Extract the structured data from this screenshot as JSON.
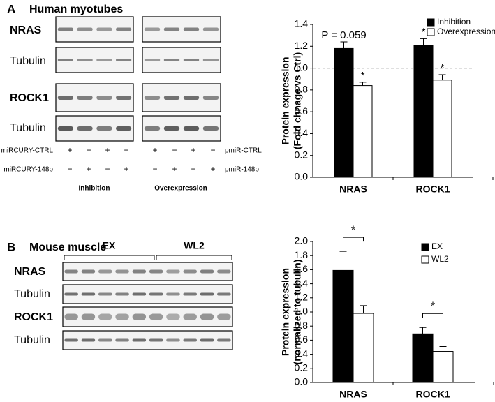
{
  "panel_a": {
    "label": "A",
    "title": "Human myotubes",
    "blot_labels": [
      "NRAS",
      "Tubulin",
      "ROCK1",
      "Tubulin"
    ],
    "rows": [
      {
        "left": "miRCURY-CTRL",
        "right": "pmiR-CTRL",
        "left_signs": [
          "+",
          "−",
          "+",
          "−"
        ],
        "right_signs": [
          "+",
          "−",
          "+",
          "−"
        ]
      },
      {
        "left": "miRCURY-148b",
        "right": "pmiR-148b",
        "left_signs": [
          "−",
          "+",
          "−",
          "+"
        ],
        "right_signs": [
          "−",
          "+",
          "−",
          "+"
        ]
      }
    ],
    "groups": [
      "Inhibition",
      "Overexpression"
    ]
  },
  "panel_b": {
    "label": "B",
    "title": "Mouse muscle",
    "blot_labels": [
      "NRAS",
      "Tubulin",
      "ROCK1",
      "Tubulin"
    ],
    "groups": [
      "EX",
      "WL2"
    ]
  },
  "chart_data": [
    {
      "type": "bar",
      "ylabel": [
        "Protein expression",
        "(Fold chnage vs Ctrl)"
      ],
      "categories": [
        "NRAS",
        "ROCK1"
      ],
      "series": [
        {
          "name": "Inhibition",
          "color": "#000000",
          "values": [
            1.18,
            1.21
          ],
          "errors": [
            0.06,
            0.06
          ],
          "annotations": [
            "P = 0.059",
            "*"
          ]
        },
        {
          "name": "Overexpression",
          "color": "#ffffff",
          "values": [
            0.84,
            0.89
          ],
          "errors": [
            0.03,
            0.05
          ],
          "annotations": [
            "*",
            "*"
          ]
        }
      ],
      "ylim": [
        0,
        1.4
      ],
      "yticks": [
        {
          "value": 0,
          "label": "0.0"
        },
        0.2,
        0.4,
        0.6,
        0.8,
        {
          "value": 1,
          "label": "1.0"
        },
        1.2,
        1.4
      ],
      "hline": 1
    },
    {
      "type": "bar",
      "ylabel": [
        "Protein expression",
        "(normalized to tubulin)"
      ],
      "categories": [
        "NRAS",
        "ROCK1"
      ],
      "series": [
        {
          "name": "EX",
          "color": "#000000",
          "values": [
            1.59,
            0.69
          ],
          "errors": [
            0.27,
            0.09
          ]
        },
        {
          "name": "WL2",
          "color": "#ffffff",
          "values": [
            0.98,
            0.44
          ],
          "errors": [
            0.11,
            0.07
          ]
        }
      ],
      "bracket_labels": [
        "*",
        "*"
      ],
      "ylim": [
        0,
        2
      ],
      "yticks": [
        {
          "value": 0,
          "label": "0.0"
        },
        0.2,
        0.4,
        0.6,
        0.8,
        {
          "value": 1,
          "label": "1.0"
        },
        1.2,
        1.4,
        1.6,
        1.8,
        {
          "value": 2,
          "label": "2.0"
        }
      ]
    }
  ]
}
